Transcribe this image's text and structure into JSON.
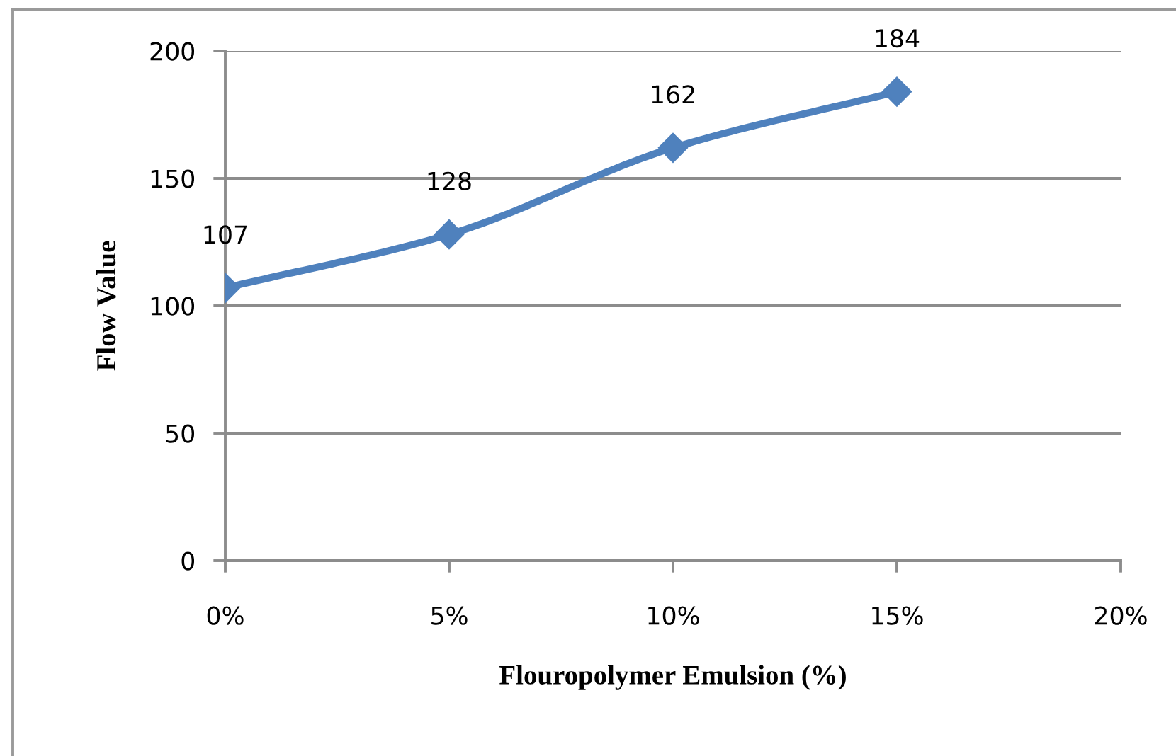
{
  "chart_data": {
    "type": "line",
    "xlabel": "Flouropolymer Emulsion (%)",
    "ylabel": "Flow Value",
    "x": [
      0,
      5,
      10,
      15
    ],
    "series": [
      {
        "color": "#4f81bd",
        "values": [
          107,
          128,
          162,
          184
        ]
      }
    ],
    "xlim": [
      0,
      20
    ],
    "xticks": [
      {
        "value": 0,
        "label": "0%"
      },
      {
        "value": 5,
        "label": "5%"
      },
      {
        "value": 10,
        "label": "10%"
      },
      {
        "value": 15,
        "label": "15%"
      },
      {
        "value": 20,
        "label": "20%"
      }
    ],
    "ylim": [
      0,
      200
    ],
    "yticks": [
      0,
      50,
      100,
      150,
      200
    ],
    "grid": "y",
    "marker": "diamond",
    "line_style": "solid",
    "data_labels": true
  }
}
